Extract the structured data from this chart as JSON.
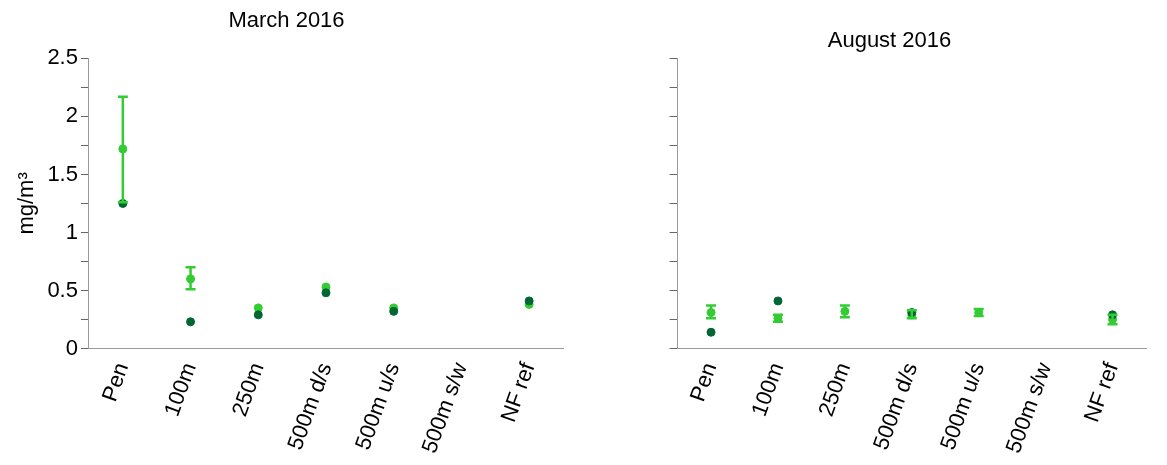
{
  "chart_data": [
    {
      "type": "scatter",
      "title": "March 2016",
      "ylabel": "mg/m³",
      "categories": [
        "Pen",
        "100m",
        "250m",
        "500m d/s",
        "500m u/s",
        "500m s/w",
        "NF ref"
      ],
      "series": [
        {
          "color": "#006633",
          "values": [
            1.25,
            0.23,
            0.29,
            0.48,
            0.32,
            null,
            0.41
          ]
        },
        {
          "color": "#33cc33",
          "values": [
            1.72,
            0.6,
            0.35,
            0.53,
            0.35,
            null,
            0.38
          ],
          "errors": [
            [
              1.26,
              2.17
            ],
            [
              0.51,
              0.7
            ],
            null,
            null,
            null,
            null,
            null
          ]
        }
      ],
      "ylim": [
        0,
        2.5
      ],
      "yticks": [
        0,
        {
          "value": 0.25,
          "label": null
        },
        0.5,
        {
          "value": 0.75,
          "label": null
        },
        1,
        {
          "value": 1.25,
          "label": null
        },
        1.5,
        {
          "value": 1.75,
          "label": null
        },
        2,
        {
          "value": 2.25,
          "label": null
        },
        2.5
      ],
      "grid": false,
      "legend": false,
      "marker": "circle"
    },
    {
      "type": "scatter",
      "title": "August 2016",
      "categories": [
        "Pen",
        "100m",
        "250m",
        "500m d/s",
        "500m u/s",
        "500m s/w",
        "NF ref"
      ],
      "series": [
        {
          "color": "#006633",
          "values": [
            0.14,
            0.41,
            null,
            0.31,
            null,
            null,
            0.29
          ]
        },
        {
          "color": "#33cc33",
          "values": [
            0.31,
            0.26,
            0.32,
            0.29,
            0.31,
            null,
            0.25
          ],
          "errors": [
            [
              0.26,
              0.37
            ],
            [
              0.23,
              0.29
            ],
            [
              0.27,
              0.37
            ],
            [
              0.26,
              0.33
            ],
            [
              0.28,
              0.34
            ],
            null,
            [
              0.21,
              0.29
            ]
          ]
        }
      ],
      "ylim": [
        0,
        2.5
      ],
      "yticks": [
        0,
        {
          "value": 0.25,
          "label": null
        },
        0.5,
        {
          "value": 0.75,
          "label": null
        },
        1,
        {
          "value": 1.25,
          "label": null
        },
        1.5,
        {
          "value": 1.75,
          "label": null
        },
        2,
        {
          "value": 2.25,
          "label": null
        },
        2.5
      ],
      "tick_labels": "x",
      "grid": false,
      "legend": false,
      "marker": "circle"
    }
  ]
}
